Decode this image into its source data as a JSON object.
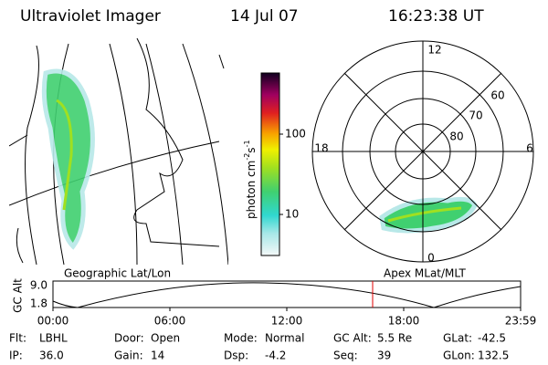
{
  "header": {
    "instrument": "Ultraviolet Imager",
    "date": "14 Jul 07",
    "time": "16:23:38 UT"
  },
  "colorbar": {
    "tick_high": "100",
    "tick_low": "10",
    "unit_base": "photon cm",
    "unit_exp1": "-2",
    "unit_s": "s",
    "unit_exp2": "-1"
  },
  "polar": {
    "mlt_top": "12",
    "mlt_left": "18",
    "mlt_right": "6",
    "mlt_bottom": "0",
    "lat_outer": "60",
    "lat_mid": "70",
    "lat_inner": "80"
  },
  "orbit": {
    "left_caption": "Geographic Lat/Lon",
    "right_caption": "Apex MLat/MLT",
    "axis_label": "GC Alt",
    "alt_high": "9.0",
    "alt_low": "1.8",
    "times": [
      "00:00",
      "06:00",
      "12:00",
      "18:00",
      "23:59"
    ]
  },
  "info": [
    [
      {
        "label": "Flt:",
        "value": "LBHL"
      },
      {
        "label": "Door:",
        "value": "Open"
      },
      {
        "label": "Mode:",
        "value": "Normal"
      },
      {
        "label": "GC Alt:",
        "value": "5.5 Re"
      },
      {
        "label": "GLat:",
        "value": "-42.5"
      }
    ],
    [
      {
        "label": "IP:",
        "value": "36.0"
      },
      {
        "label": "Gain:",
        "value": "14"
      },
      {
        "label": "Dsp:",
        "value": "-4.2"
      },
      {
        "label": "Seq:",
        "value": "39"
      },
      {
        "label": "GLon:",
        "value": "132.5"
      }
    ]
  ]
}
